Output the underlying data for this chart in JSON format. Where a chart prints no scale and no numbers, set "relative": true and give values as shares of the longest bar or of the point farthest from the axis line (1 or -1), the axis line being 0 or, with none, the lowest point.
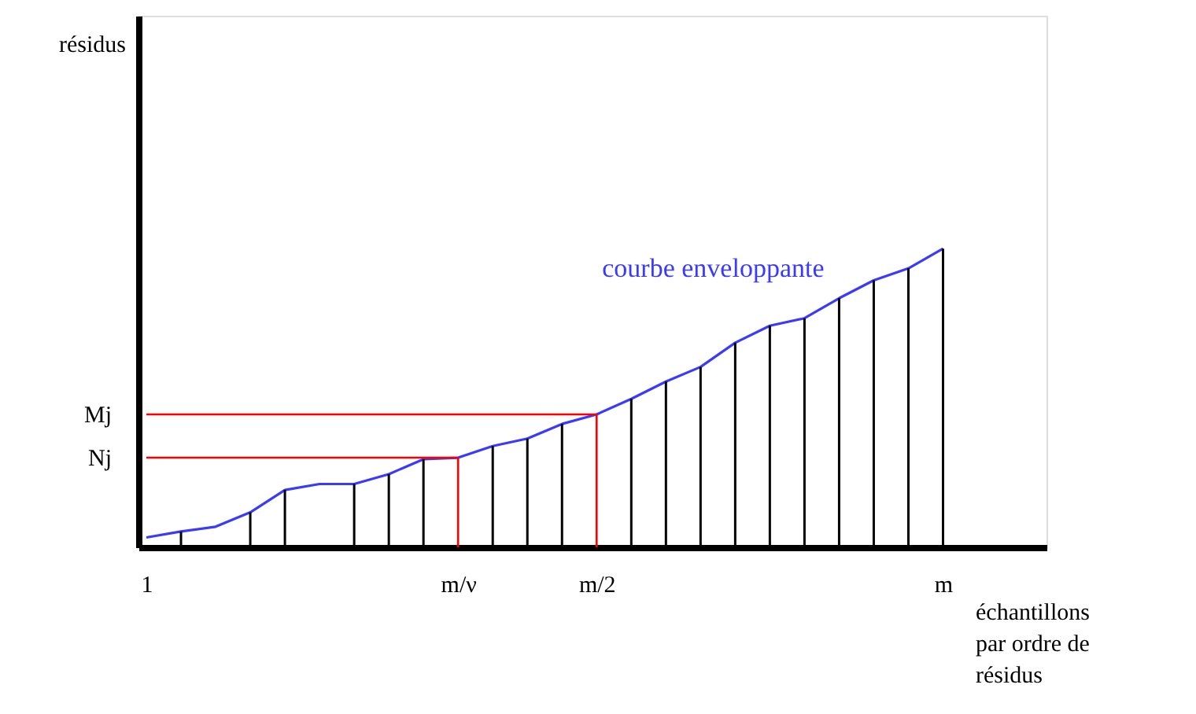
{
  "chart_data": {
    "type": "line",
    "relative": true,
    "annotations": [
      "résidus"
    ],
    "xlabel": "échantillons\npar ordre de\nrésidus",
    "categories": [
      "1",
      null,
      null,
      null,
      null,
      null,
      null,
      null,
      null,
      "m/ν",
      null,
      null,
      null,
      "m/2",
      null,
      null,
      null,
      null,
      null,
      null,
      null,
      null,
      null,
      "m"
    ],
    "series": [
      {
        "name": "courbe enveloppante",
        "color": "#3a3aff",
        "values": [
          0.033,
          0.053,
          0.069,
          0.117,
          0.192,
          0.212,
          0.212,
          0.245,
          0.295,
          0.3,
          0.339,
          0.364,
          0.413,
          0.445,
          0.497,
          0.555,
          0.604,
          0.685,
          0.742,
          0.767,
          0.834,
          0.894,
          0.934,
          1
        ]
      },
      {
        "type": "bar",
        "color": "#000000",
        "values": [
          null,
          0.053,
          null,
          0.117,
          0.192,
          null,
          0.212,
          0.245,
          0.295,
          null,
          0.339,
          0.364,
          0.413,
          null,
          0.497,
          0.555,
          0.604,
          0.685,
          0.742,
          0.767,
          0.834,
          0.894,
          0.934,
          1
        ]
      }
    ],
    "ref_lines": [
      {
        "axis": "y",
        "value": 0.3,
        "label": "Nj",
        "color": "#ff0000"
      },
      {
        "axis": "y",
        "value": 0.445,
        "label": "Mj",
        "color": "#ff0000"
      },
      {
        "axis": "x",
        "value": "m/ν",
        "color": "#ff0000"
      },
      {
        "axis": "x",
        "value": "m/2",
        "color": "#ff0000"
      }
    ]
  }
}
